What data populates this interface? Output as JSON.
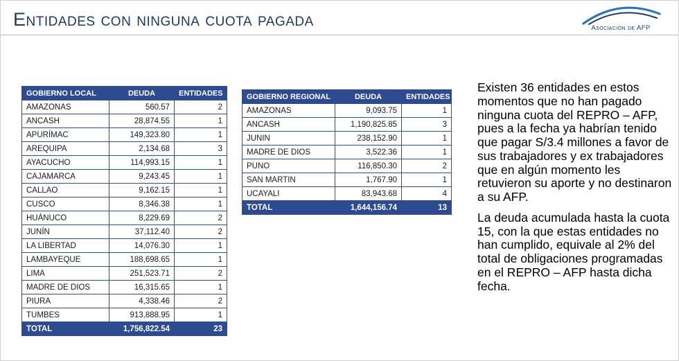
{
  "header": {
    "title": "Entidades con ninguna cuota pagada",
    "logo_text": "Asociación de AFP"
  },
  "colors": {
    "accent": "#2E4B8F",
    "title": "#1F3864"
  },
  "tables": {
    "local": {
      "headers": [
        "GOBIERNO LOCAL",
        "DEUDA",
        "ENTIDADES"
      ],
      "rows": [
        [
          "AMAZONAS",
          "560.57",
          "2"
        ],
        [
          "ANCASH",
          "28,874.55",
          "1"
        ],
        [
          "APURÍMAC",
          "149,323.80",
          "1"
        ],
        [
          "AREQUIPA",
          "2,134.68",
          "3"
        ],
        [
          "AYACUCHO",
          "114,993.15",
          "1"
        ],
        [
          "CAJAMARCA",
          "9,243.45",
          "1"
        ],
        [
          "CALLAO",
          "9,162.15",
          "1"
        ],
        [
          "CUSCO",
          "8,346.38",
          "1"
        ],
        [
          "HUÁNUCO",
          "8,229.69",
          "2"
        ],
        [
          "JUNÍN",
          "37,112.40",
          "2"
        ],
        [
          "LA LIBERTAD",
          "14,076.30",
          "1"
        ],
        [
          "LAMBAYEQUE",
          "188,698.65",
          "1"
        ],
        [
          "LIMA",
          "251,523.71",
          "2"
        ],
        [
          "MADRE DE DIOS",
          "16,315.65",
          "1"
        ],
        [
          "PIURA",
          "4,338.46",
          "2"
        ],
        [
          "TUMBES",
          "913,888.95",
          "1"
        ]
      ],
      "total": [
        "TOTAL",
        "1,756,822.54",
        "23"
      ]
    },
    "regional": {
      "headers": [
        "GOBIERNO REGIONAL",
        "DEUDA",
        "ENTIDADES"
      ],
      "rows": [
        [
          "AMAZONAS",
          "9,093.75",
          "1"
        ],
        [
          "ANCASH",
          "1,190,825.85",
          "3"
        ],
        [
          "JUNIN",
          "238,152.90",
          "1"
        ],
        [
          "MADRE DE DIOS",
          "3,522.36",
          "1"
        ],
        [
          "PUNO",
          "116,850.30",
          "2"
        ],
        [
          "SAN MARTIN",
          "1,767.90",
          "1"
        ],
        [
          "UCAYALI",
          "83,943.68",
          "4"
        ]
      ],
      "total": [
        "TOTAL",
        "1,644,156.74",
        "13"
      ]
    }
  },
  "commentary": {
    "paragraph1": "Existen 36 entidades en estos momentos que no han pagado ninguna cuota del REPRO – AFP, pues a la fecha ya habrían tenido que pagar S/3.4 millones a favor de sus trabajadores y ex trabajadores que en algún momento les retuvieron su aporte y no destinaron a su AFP.",
    "paragraph2": "La deuda acumulada hasta la cuota 15, con la que estas entidades no han cumplido, equivale al 2% del total de obligaciones programadas en el REPRO – AFP hasta dicha fecha."
  }
}
